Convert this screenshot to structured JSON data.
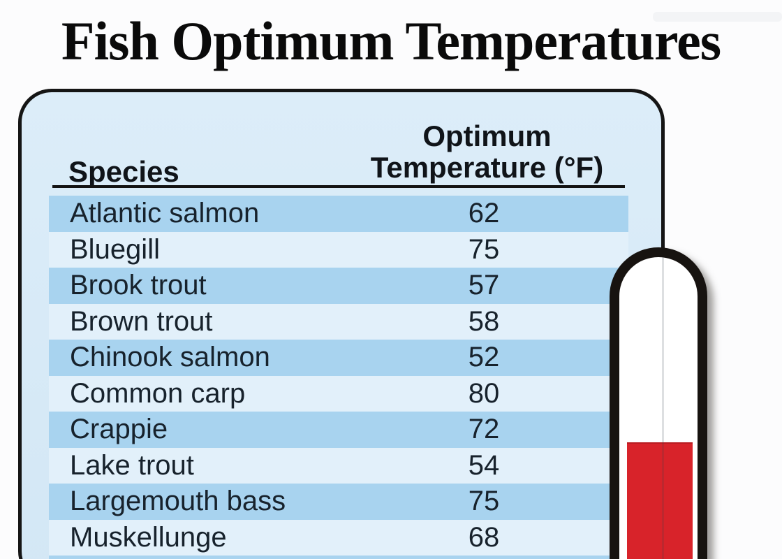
{
  "page": {
    "title": "Fish Optimum Temperatures"
  },
  "table": {
    "headers": {
      "species": "Species",
      "optimum_line1": "Optimum",
      "optimum_line2": "Temperature (°F)"
    },
    "rows": [
      {
        "species": "Atlantic salmon",
        "temp": "62"
      },
      {
        "species": "Bluegill",
        "temp": "75"
      },
      {
        "species": "Brook trout",
        "temp": "57"
      },
      {
        "species": "Brown trout",
        "temp": "58"
      },
      {
        "species": "Chinook salmon",
        "temp": "52"
      },
      {
        "species": "Common carp",
        "temp": "80"
      },
      {
        "species": "Crappie",
        "temp": "72"
      },
      {
        "species": "Lake trout",
        "temp": "54"
      },
      {
        "species": "Largemouth bass",
        "temp": "75"
      },
      {
        "species": "Muskellunge",
        "temp": "68"
      }
    ],
    "colors": {
      "panel_bg": "#d7e9f6",
      "row_dark": "#a8d3ef",
      "row_light": "#e2f0fa",
      "panel_border": "#151515"
    }
  },
  "thermometer": {
    "mercury_color": "#d8232a",
    "tube_fill_color": "#ffffff",
    "tube_outline_color": "#171310"
  },
  "chart_data": {
    "type": "table",
    "title": "Fish Optimum Temperatures",
    "columns": [
      "Species",
      "Optimum Temperature (°F)"
    ],
    "rows": [
      [
        "Atlantic salmon",
        62
      ],
      [
        "Bluegill",
        75
      ],
      [
        "Brook trout",
        57
      ],
      [
        "Brown trout",
        58
      ],
      [
        "Chinook salmon",
        52
      ],
      [
        "Common carp",
        80
      ],
      [
        "Crappie",
        72
      ],
      [
        "Lake trout",
        54
      ],
      [
        "Largemouth bass",
        75
      ],
      [
        "Muskellunge",
        68
      ]
    ],
    "value_range": [
      52,
      80
    ],
    "annotations": [
      "red thermometer graphic, partially filled, overlapping right edge of table"
    ]
  }
}
